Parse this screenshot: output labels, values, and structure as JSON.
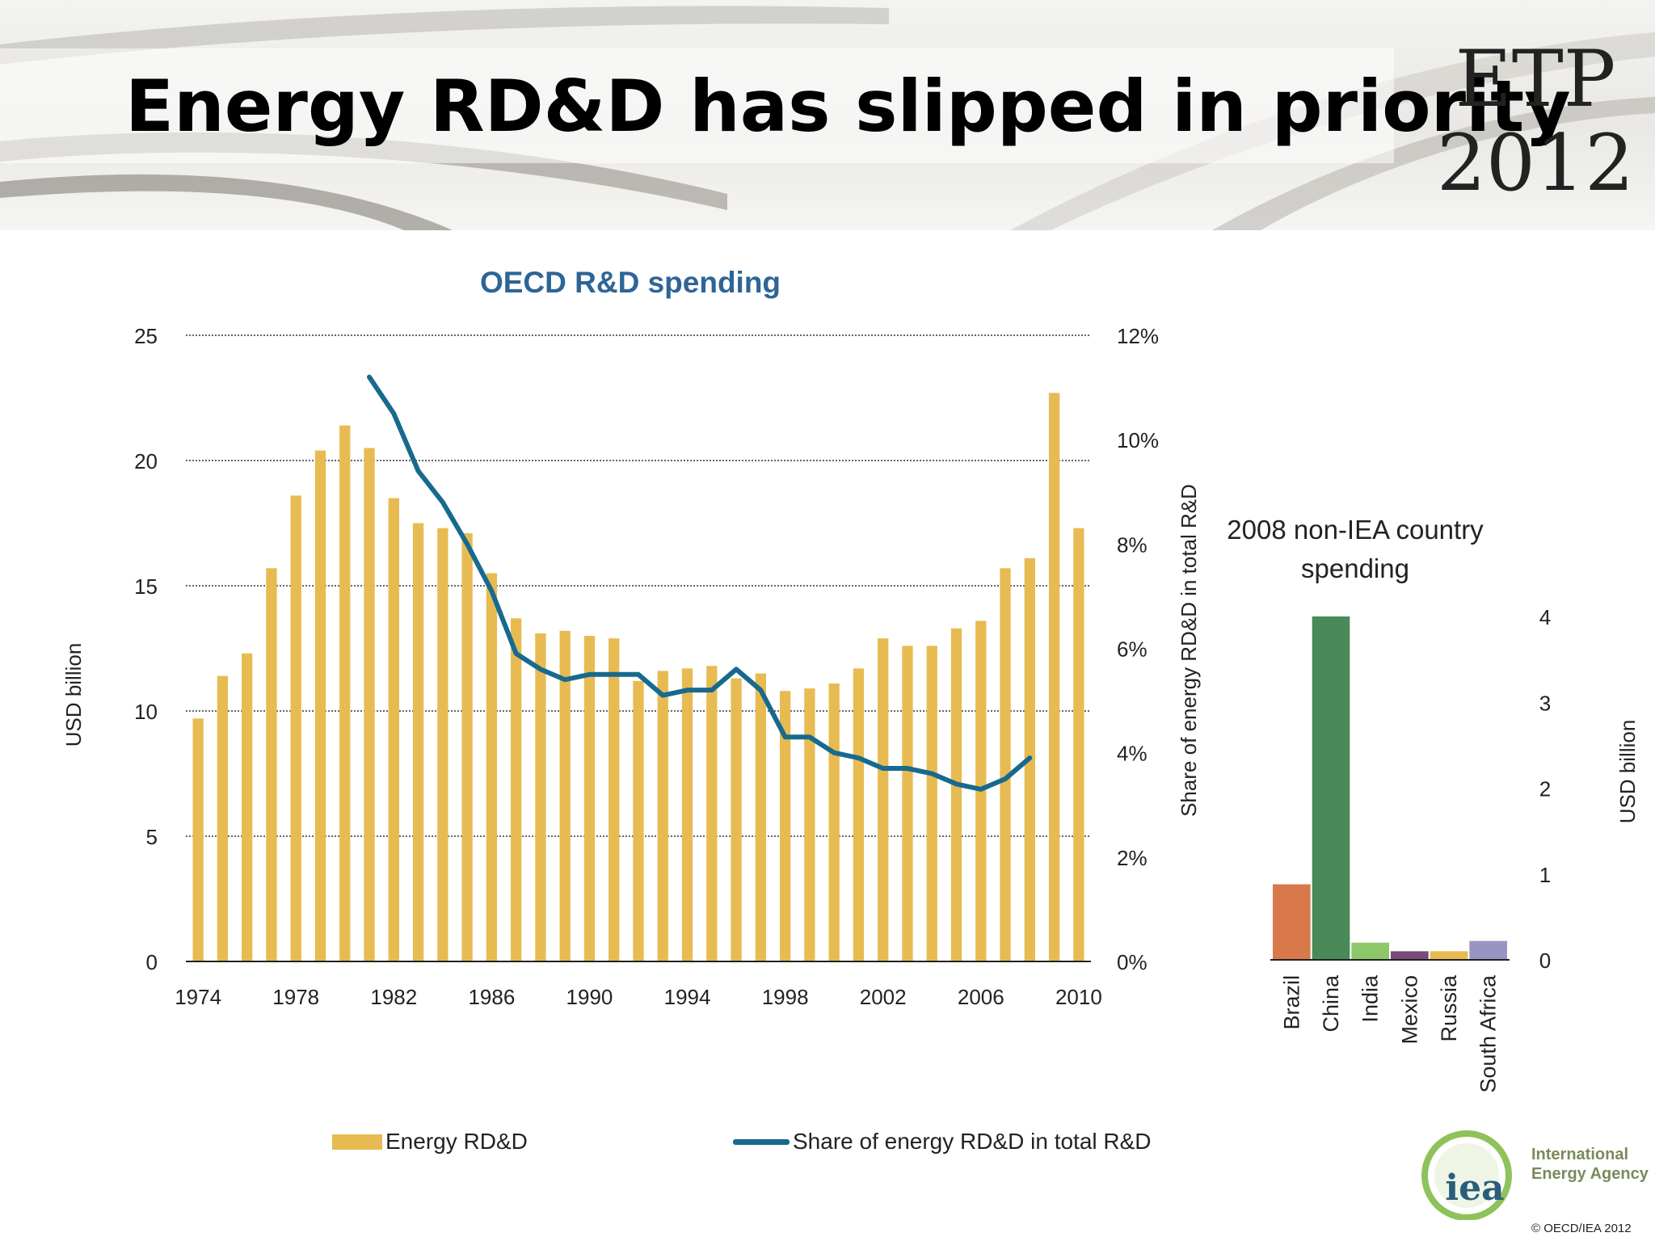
{
  "slide": {
    "title": "Energy RD&D has slipped in priority",
    "badge_line1": "ETP",
    "badge_line2": "2012",
    "copyright": "© OECD/IEA 2012",
    "logo": {
      "text": "iea",
      "line1": "International",
      "line2": "Energy Agency"
    }
  },
  "colors": {
    "bar": "#e8bb52",
    "line": "#176a8e",
    "title": "#2e6596",
    "Brazil": "#d9784a",
    "China": "#4a8a58",
    "India": "#8ec76a",
    "Mexico": "#7a4a7a",
    "Russia": "#e8bb52",
    "South Africa": "#9a95c0"
  },
  "chart_data": [
    {
      "type": "bar",
      "title": "OECD R&D spending",
      "ylabel": "USD billion",
      "y2label": "Share of energy RD&D in total R&D",
      "ylim": [
        0,
        25
      ],
      "y2lim": [
        0,
        0.12
      ],
      "yticks": [
        "0",
        "5",
        "10",
        "15",
        "20",
        "25"
      ],
      "y2ticks": [
        "0%",
        "2%",
        "4%",
        "6%",
        "8%",
        "10%",
        "12%"
      ],
      "xticks": [
        "1974",
        "1978",
        "1982",
        "1986",
        "1990",
        "1994",
        "1998",
        "2002",
        "2006",
        "2010"
      ],
      "grid": true,
      "legend_position": "bottom",
      "series": [
        {
          "name": "Energy RD&D",
          "type": "bar",
          "axis": "left",
          "x": [
            1974,
            1975,
            1976,
            1977,
            1978,
            1979,
            1980,
            1981,
            1982,
            1983,
            1984,
            1985,
            1986,
            1987,
            1988,
            1989,
            1990,
            1991,
            1992,
            1993,
            1994,
            1995,
            1996,
            1997,
            1998,
            1999,
            2000,
            2001,
            2002,
            2003,
            2004,
            2005,
            2006,
            2007,
            2008,
            2009,
            2010
          ],
          "values": [
            9.7,
            11.4,
            12.3,
            15.7,
            18.6,
            20.4,
            21.4,
            20.5,
            18.5,
            17.5,
            17.3,
            17.1,
            15.5,
            13.7,
            13.1,
            13.2,
            13.0,
            12.9,
            11.2,
            11.6,
            11.7,
            11.8,
            11.3,
            11.5,
            10.8,
            10.9,
            11.1,
            11.7,
            12.9,
            12.6,
            12.6,
            13.3,
            13.6,
            15.7,
            16.1,
            22.7,
            17.3
          ]
        },
        {
          "name": "Share of energy RD&D in total R&D",
          "type": "line",
          "axis": "right",
          "x": [
            1981,
            1982,
            1983,
            1984,
            1985,
            1986,
            1987,
            1988,
            1989,
            1990,
            1991,
            1992,
            1993,
            1994,
            1995,
            1996,
            1997,
            1998,
            1999,
            2000,
            2001,
            2002,
            2003,
            2004,
            2005,
            2006,
            2007,
            2008
          ],
          "values": [
            0.112,
            0.105,
            0.094,
            0.088,
            0.08,
            0.071,
            0.059,
            0.056,
            0.054,
            0.055,
            0.055,
            0.055,
            0.051,
            0.052,
            0.052,
            0.056,
            0.052,
            0.043,
            0.043,
            0.04,
            0.039,
            0.037,
            0.037,
            0.036,
            0.034,
            0.033,
            0.035,
            0.039
          ]
        }
      ]
    },
    {
      "type": "bar",
      "title": "2008 non-IEA country spending",
      "title_line1": "2008 non-IEA country",
      "title_line2": "spending",
      "ylabel": "USD billion",
      "ylim": [
        0,
        4
      ],
      "yticks": [
        "0",
        "1",
        "2",
        "3",
        "4"
      ],
      "grid": false,
      "categories": [
        "Brazil",
        "China",
        "India",
        "Mexico",
        "Russia",
        "South Africa"
      ],
      "values": [
        0.88,
        4.0,
        0.2,
        0.1,
        0.1,
        0.22
      ]
    }
  ]
}
